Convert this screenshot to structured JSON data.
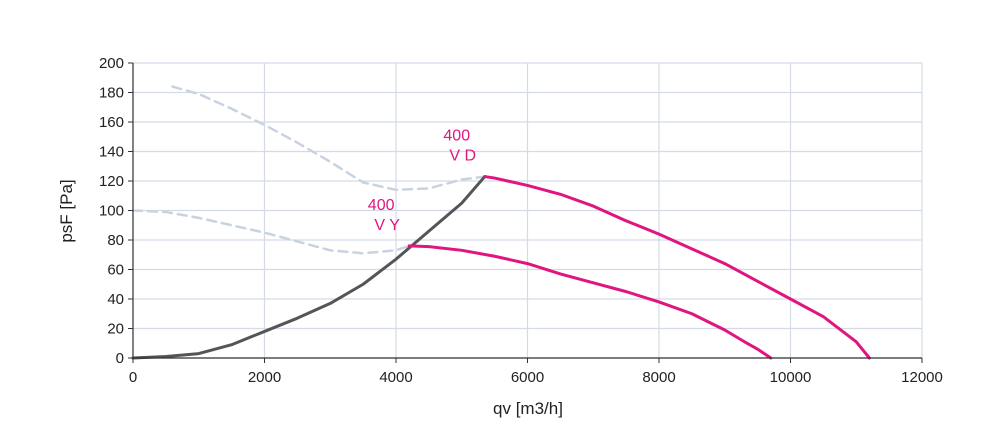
{
  "chart_data": {
    "type": "line",
    "xlabel": "qv [m3/h]",
    "ylabel": "psF [Pa]",
    "xlim": [
      0,
      12000
    ],
    "ylim": [
      0,
      200
    ],
    "x_ticks": [
      "0",
      "2000",
      "4000",
      "6000",
      "8000",
      "10000",
      "12000"
    ],
    "y_ticks": [
      "0",
      "20",
      "40",
      "60",
      "80",
      "100",
      "120",
      "140",
      "160",
      "180",
      "200"
    ],
    "grid": true,
    "colors": {
      "fan_curve": "#e0157f",
      "system_curve": "#555555",
      "limit_curve": "#c9d3e0",
      "grid": "#d4dbe6",
      "axis": "#333333"
    },
    "series": [
      {
        "key": "vd",
        "role": "fan",
        "x": [
          5350,
          5500,
          6000,
          6500,
          7000,
          7500,
          8000,
          8500,
          9000,
          9500,
          10000,
          10500,
          11000,
          11200
        ],
        "y": [
          123,
          122,
          117,
          111,
          103,
          93,
          84,
          74,
          64,
          52,
          40,
          28,
          11,
          0
        ]
      },
      {
        "key": "vy",
        "role": "fan",
        "x": [
          4200,
          4500,
          5000,
          5500,
          6000,
          6500,
          7000,
          7500,
          8000,
          8500,
          9000,
          9300,
          9500,
          9700
        ],
        "y": [
          76,
          75.5,
          73,
          69,
          64,
          57,
          51,
          45,
          38,
          30,
          19,
          11,
          6,
          0
        ]
      },
      {
        "key": "system",
        "role": "system",
        "x": [
          0,
          500,
          1000,
          1500,
          2000,
          2500,
          3000,
          3500,
          4000,
          4500,
          5000,
          5350
        ],
        "y": [
          0,
          1,
          3,
          9,
          18,
          27,
          37,
          50,
          67,
          86,
          105,
          123
        ]
      },
      {
        "key": "limit_upper",
        "role": "limit",
        "x": [
          600,
          1000,
          1500,
          2000,
          2500,
          3000,
          3500,
          4000,
          4500,
          5000,
          5350
        ],
        "y": [
          184,
          179,
          169,
          158,
          146,
          133,
          119,
          114,
          115,
          121,
          123
        ]
      },
      {
        "key": "limit_lower",
        "role": "limit",
        "x": [
          0,
          500,
          1000,
          1500,
          2000,
          2500,
          3000,
          3500,
          4000,
          4200
        ],
        "y": [
          100,
          99,
          95,
          90,
          85,
          79,
          73,
          71,
          73,
          76
        ]
      }
    ],
    "annotations": [
      {
        "series": "vd",
        "lines": [
          "400",
          "V D"
        ]
      },
      {
        "series": "vy",
        "lines": [
          "400",
          "V Y"
        ]
      }
    ]
  }
}
